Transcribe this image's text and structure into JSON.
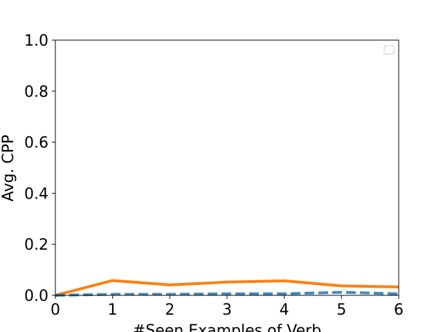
{
  "chart_data": {
    "type": "line",
    "title": "",
    "xlabel": "#Seen Examples of Verb",
    "ylabel": "Avg. CPP",
    "xlim": [
      0,
      6
    ],
    "ylim": [
      0,
      1.0
    ],
    "x_ticks": [
      "0",
      "1",
      "2",
      "3",
      "4",
      "5",
      "6"
    ],
    "y_ticks": [
      "0.0",
      "0.2",
      "0.4",
      "0.6",
      "0.8",
      "1.0"
    ],
    "grid": false,
    "legend": {
      "placement": "top-right",
      "entries": []
    },
    "x": [
      0,
      1,
      2,
      3,
      4,
      5,
      6
    ],
    "series": [
      {
        "color": "#ff7f0e",
        "style": "solid",
        "values": [
          0.0,
          0.058,
          0.041,
          0.052,
          0.057,
          0.037,
          0.033
        ]
      },
      {
        "color": "#1f77b4",
        "style": "dashed",
        "values": [
          0.0,
          0.004,
          0.004,
          0.006,
          0.006,
          0.012,
          0.006
        ]
      }
    ]
  }
}
